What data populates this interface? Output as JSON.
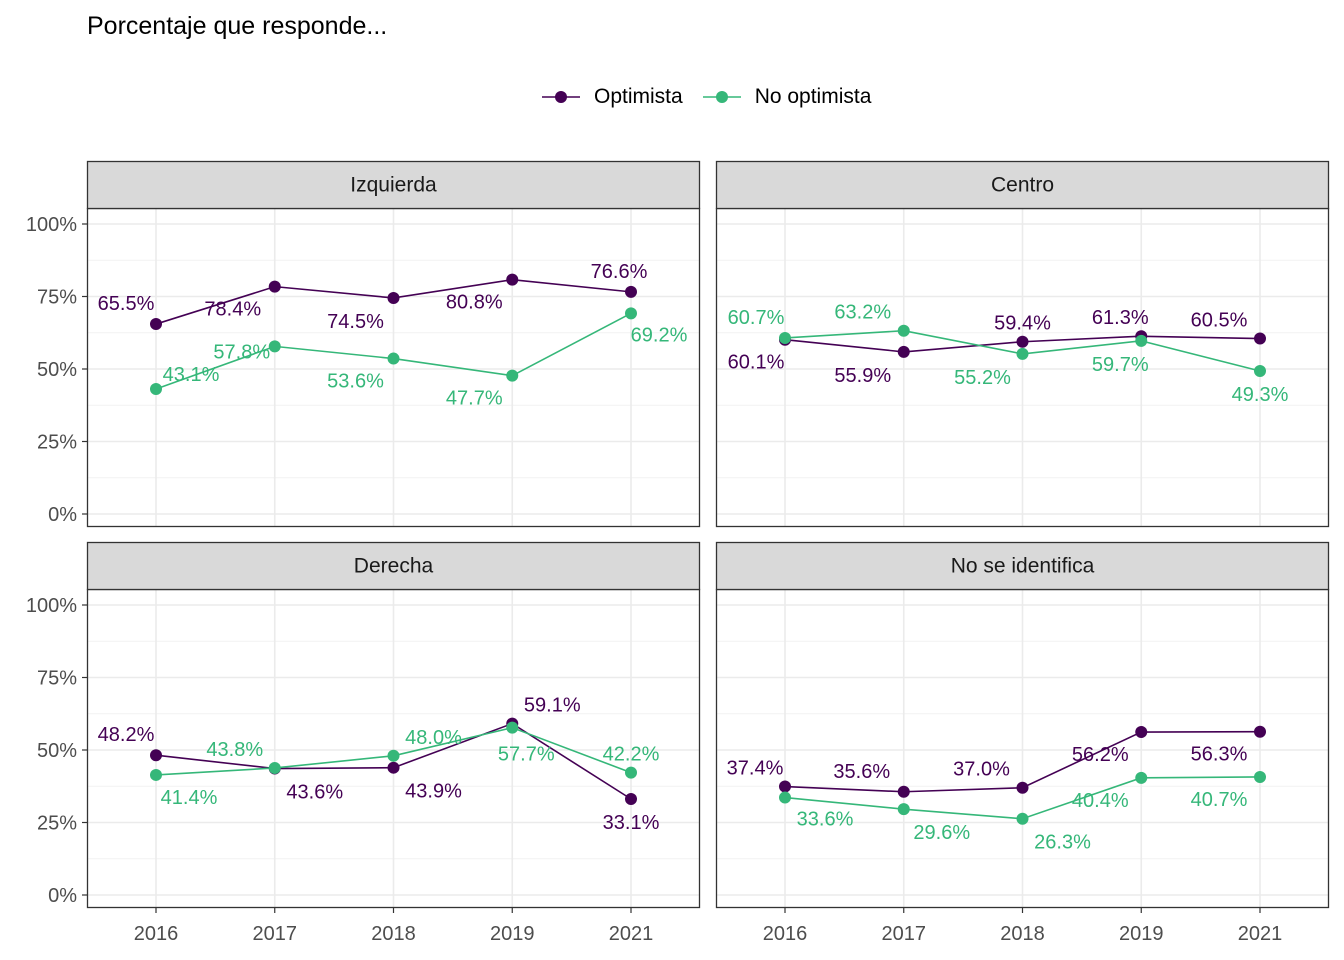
{
  "title": "Porcentaje que responde...",
  "legend": [
    {
      "label": "Optimista",
      "color": "#440154"
    },
    {
      "label": "No optimista",
      "color": "#35b779"
    }
  ],
  "chart_data": {
    "type": "line",
    "x": [
      "2016",
      "2017",
      "2018",
      "2019",
      "2021"
    ],
    "ylim": [
      0,
      100
    ],
    "y_ticks": [
      "0%",
      "25%",
      "50%",
      "75%",
      "100%"
    ],
    "grid": true,
    "legend_position": "top",
    "panels": [
      {
        "name": "Izquierda",
        "series": [
          {
            "name": "Optimista",
            "color": "#440154",
            "values": [
              65.5,
              78.4,
              74.5,
              80.8,
              76.6
            ],
            "labels": [
              "65.5%",
              "78.4%",
              "74.5%",
              "80.8%",
              "76.6%"
            ]
          },
          {
            "name": "No optimista",
            "color": "#35b779",
            "values": [
              43.1,
              57.8,
              53.6,
              47.7,
              69.2
            ],
            "labels": [
              "43.1%",
              "57.8%",
              "53.6%",
              "47.7%",
              "69.2%"
            ]
          }
        ]
      },
      {
        "name": "Centro",
        "series": [
          {
            "name": "Optimista",
            "color": "#440154",
            "values": [
              60.1,
              55.9,
              59.4,
              61.3,
              60.5
            ],
            "labels": [
              "60.1%",
              "55.9%",
              "59.4%",
              "61.3%",
              "60.5%"
            ]
          },
          {
            "name": "No optimista",
            "color": "#35b779",
            "values": [
              60.7,
              63.2,
              55.2,
              59.7,
              49.3
            ],
            "labels": [
              "60.7%",
              "63.2%",
              "55.2%",
              "59.7%",
              "49.3%"
            ]
          }
        ]
      },
      {
        "name": "Derecha",
        "series": [
          {
            "name": "Optimista",
            "color": "#440154",
            "values": [
              48.2,
              43.6,
              43.9,
              59.1,
              33.1
            ],
            "labels": [
              "48.2%",
              "43.6%",
              "43.9%",
              "59.1%",
              "33.1%"
            ]
          },
          {
            "name": "No optimista",
            "color": "#35b779",
            "values": [
              41.4,
              43.8,
              48.0,
              57.7,
              42.2
            ],
            "labels": [
              "41.4%",
              "43.8%",
              "48.0%",
              "57.7%",
              "42.2%"
            ]
          }
        ]
      },
      {
        "name": "No se identifica",
        "series": [
          {
            "name": "Optimista",
            "color": "#440154",
            "values": [
              37.4,
              35.6,
              37.0,
              56.2,
              56.3
            ],
            "labels": [
              "37.4%",
              "35.6%",
              "37.0%",
              "56.2%",
              "56.3%"
            ]
          },
          {
            "name": "No optimista",
            "color": "#35b779",
            "values": [
              33.6,
              29.6,
              26.3,
              40.4,
              40.7
            ],
            "labels": [
              "33.6%",
              "29.6%",
              "26.3%",
              "40.4%",
              "40.7%"
            ]
          }
        ]
      }
    ]
  }
}
